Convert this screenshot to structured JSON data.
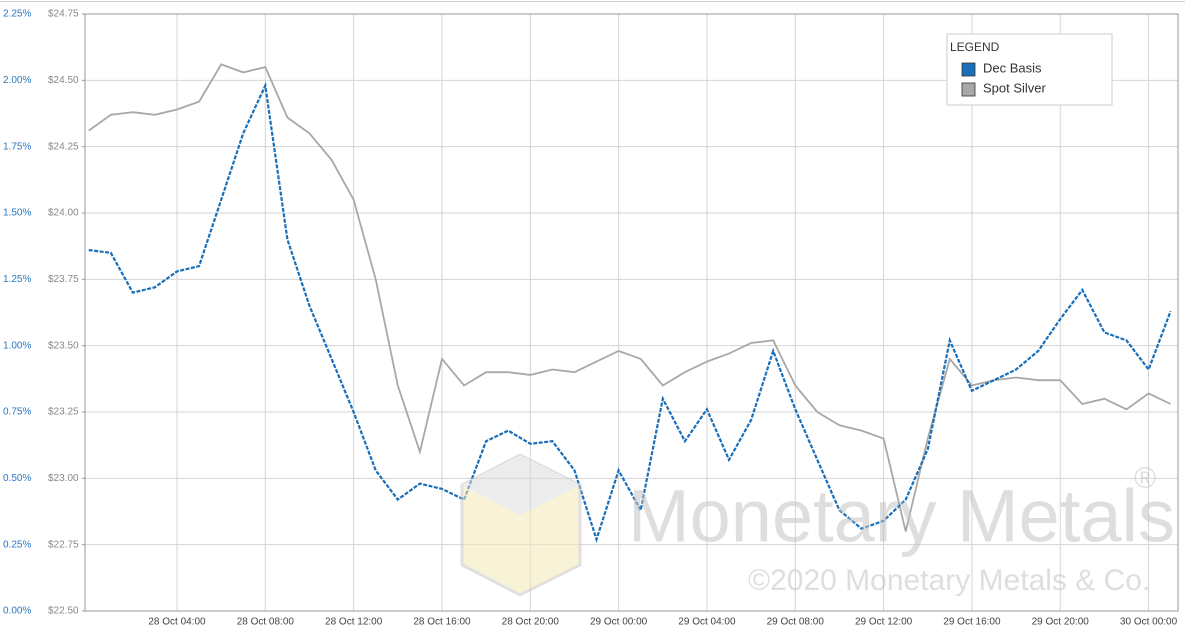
{
  "chart_data": {
    "type": "line",
    "watermark": "Monetary Metals",
    "watermark_mark": "®",
    "copyright": "©2020 Monetary Metals & Co.",
    "legend_title": "LEGEND",
    "legend": "top-right",
    "grid": true,
    "x": [
      "28 Oct 00:00",
      "28 Oct 01:00",
      "28 Oct 02:00",
      "28 Oct 03:00",
      "28 Oct 04:00",
      "28 Oct 05:00",
      "28 Oct 06:00",
      "28 Oct 07:00",
      "28 Oct 08:00",
      "28 Oct 09:00",
      "28 Oct 10:00",
      "28 Oct 11:00",
      "28 Oct 12:00",
      "28 Oct 13:00",
      "28 Oct 14:00",
      "28 Oct 15:00",
      "28 Oct 16:00",
      "28 Oct 17:00",
      "28 Oct 18:00",
      "28 Oct 19:00",
      "28 Oct 20:00",
      "28 Oct 21:00",
      "28 Oct 22:00",
      "28 Oct 23:00",
      "29 Oct 00:00",
      "29 Oct 01:00",
      "29 Oct 02:00",
      "29 Oct 03:00",
      "29 Oct 04:00",
      "29 Oct 05:00",
      "29 Oct 06:00",
      "29 Oct 07:00",
      "29 Oct 08:00",
      "29 Oct 09:00",
      "29 Oct 10:00",
      "29 Oct 11:00",
      "29 Oct 12:00",
      "29 Oct 13:00",
      "29 Oct 14:00",
      "29 Oct 15:00",
      "29 Oct 16:00",
      "29 Oct 17:00",
      "29 Oct 18:00",
      "29 Oct 19:00",
      "29 Oct 20:00",
      "29 Oct 21:00",
      "29 Oct 22:00",
      "29 Oct 23:00",
      "30 Oct 00:00",
      "30 Oct 01:00"
    ],
    "series": [
      {
        "name": "Dec Basis",
        "color": "#1a6fb8",
        "values": [
          1.36,
          1.35,
          1.2,
          1.22,
          1.28,
          1.3,
          1.55,
          1.8,
          1.98,
          1.4,
          1.15,
          0.95,
          0.75,
          0.53,
          0.42,
          0.48,
          0.46,
          0.42,
          0.64,
          0.68,
          0.63,
          0.64,
          0.53,
          0.27,
          0.53,
          0.38,
          0.8,
          0.64,
          0.76,
          0.57,
          0.72,
          0.98,
          0.76,
          0.57,
          0.38,
          0.31,
          0.34,
          0.42,
          0.61,
          1.02,
          0.83,
          0.87,
          0.91,
          0.98,
          1.1,
          1.21,
          1.05,
          1.02,
          0.91,
          1.13
        ]
      },
      {
        "name": "Spot Silver",
        "color": "#a8a8a8",
        "axis": "y2",
        "values": [
          24.31,
          24.37,
          24.38,
          24.37,
          24.39,
          24.42,
          24.56,
          24.53,
          24.55,
          24.36,
          24.3,
          24.2,
          24.05,
          23.75,
          23.35,
          23.1,
          23.45,
          23.35,
          23.4,
          23.4,
          23.39,
          23.41,
          23.4,
          23.44,
          23.48,
          23.45,
          23.35,
          23.4,
          23.44,
          23.47,
          23.51,
          23.52,
          23.35,
          23.25,
          23.2,
          23.18,
          23.15,
          22.8,
          23.15,
          23.45,
          23.35,
          23.37,
          23.38,
          23.37,
          23.37,
          23.28,
          23.3,
          23.26,
          23.32,
          23.28
        ]
      }
    ],
    "xlim": [
      "27 Oct 23:50",
      "30 Oct 01:20"
    ],
    "xticks": [
      "28 Oct 04:00",
      "28 Oct 08:00",
      "28 Oct 12:00",
      "28 Oct 16:00",
      "28 Oct 20:00",
      "29 Oct 00:00",
      "29 Oct 04:00",
      "29 Oct 08:00",
      "29 Oct 12:00",
      "29 Oct 16:00",
      "29 Oct 20:00",
      "30 Oct 00:00"
    ],
    "ylim": [
      0,
      2.25
    ],
    "yticks": [
      {
        "value": 0,
        "label": "0.00%"
      },
      {
        "value": 0.25,
        "label": "0.25%"
      },
      {
        "value": 0.5,
        "label": "0.50%"
      },
      {
        "value": 0.75,
        "label": "0.75%"
      },
      {
        "value": 1,
        "label": "1.00%"
      },
      {
        "value": 1.25,
        "label": "1.25%"
      },
      {
        "value": 1.5,
        "label": "1.50%"
      },
      {
        "value": 1.75,
        "label": "1.75%"
      },
      {
        "value": 2,
        "label": "2.00%"
      },
      {
        "value": 2.25,
        "label": "2.25%"
      }
    ],
    "y2lim": [
      22.5,
      24.75
    ],
    "y2ticks": [
      {
        "value": 22.5,
        "label": "$22.50"
      },
      {
        "value": 22.75,
        "label": "$22.75"
      },
      {
        "value": 23,
        "label": "$23.00"
      },
      {
        "value": 23.25,
        "label": "$23.25"
      },
      {
        "value": 23.5,
        "label": "$23.50"
      },
      {
        "value": 23.75,
        "label": "$23.75"
      },
      {
        "value": 24,
        "label": "$24.00"
      },
      {
        "value": 24.25,
        "label": "$24.25"
      },
      {
        "value": 24.5,
        "label": "$24.50"
      },
      {
        "value": 24.75,
        "label": "$24.75"
      }
    ]
  }
}
